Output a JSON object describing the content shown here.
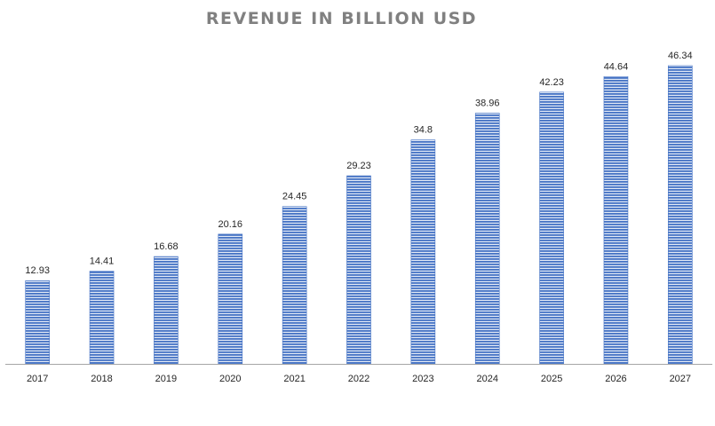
{
  "chart_data": {
    "type": "bar",
    "title": "REVENUE IN BILLION USD",
    "xlabel": "",
    "ylabel": "",
    "categories": [
      "2017",
      "2018",
      "2019",
      "2020",
      "2021",
      "2022",
      "2023",
      "2024",
      "2025",
      "2026",
      "2027"
    ],
    "values": [
      12.93,
      14.41,
      16.68,
      20.16,
      24.45,
      29.23,
      34.8,
      38.96,
      42.23,
      44.64,
      46.34
    ],
    "data_labels": [
      "12.93",
      "14.41",
      "16.68",
      "20.16",
      "24.45",
      "29.23",
      "34.8",
      "38.96",
      "42.23",
      "44.64",
      "46.34"
    ],
    "ylim": [
      0,
      46.34
    ],
    "grid": false,
    "legend": "none",
    "colors": {
      "bar_fill": "#4472c4",
      "bar_stripe": "#ffffff",
      "axis": "#a6a6a6",
      "title": "#808080",
      "text": "#262626"
    }
  }
}
